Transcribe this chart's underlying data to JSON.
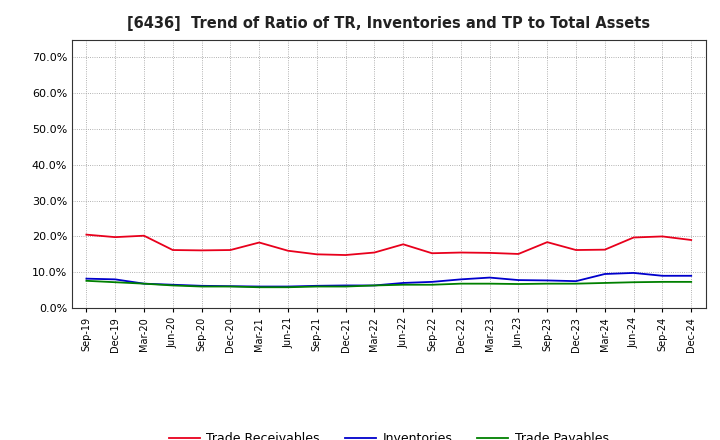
{
  "title": "[6436]  Trend of Ratio of TR, Inventories and TP to Total Assets",
  "x_labels": [
    "Sep-19",
    "Dec-19",
    "Mar-20",
    "Jun-20",
    "Sep-20",
    "Dec-20",
    "Mar-21",
    "Jun-21",
    "Sep-21",
    "Dec-21",
    "Mar-22",
    "Jun-22",
    "Sep-22",
    "Dec-22",
    "Mar-23",
    "Jun-23",
    "Sep-23",
    "Dec-23",
    "Mar-24",
    "Jun-24",
    "Sep-24",
    "Dec-24"
  ],
  "trade_receivables": [
    0.205,
    0.198,
    0.202,
    0.162,
    0.161,
    0.162,
    0.183,
    0.16,
    0.15,
    0.148,
    0.155,
    0.178,
    0.153,
    0.155,
    0.154,
    0.151,
    0.184,
    0.162,
    0.163,
    0.197,
    0.2,
    0.19
  ],
  "inventories": [
    0.082,
    0.08,
    0.068,
    0.065,
    0.062,
    0.061,
    0.06,
    0.06,
    0.062,
    0.063,
    0.063,
    0.07,
    0.073,
    0.08,
    0.085,
    0.078,
    0.077,
    0.075,
    0.095,
    0.098,
    0.09,
    0.09
  ],
  "trade_payables": [
    0.076,
    0.072,
    0.068,
    0.063,
    0.06,
    0.06,
    0.058,
    0.058,
    0.06,
    0.06,
    0.063,
    0.065,
    0.065,
    0.068,
    0.068,
    0.067,
    0.068,
    0.068,
    0.07,
    0.072,
    0.073,
    0.073
  ],
  "tr_color": "#e8001c",
  "inv_color": "#0000cc",
  "tp_color": "#008000",
  "ylim": [
    0.0,
    0.75
  ],
  "yticks": [
    0.0,
    0.1,
    0.2,
    0.3,
    0.4,
    0.5,
    0.6,
    0.7
  ],
  "ytick_labels": [
    "0.0%",
    "10.0%",
    "20.0%",
    "30.0%",
    "40.0%",
    "50.0%",
    "60.0%",
    "70.0%"
  ],
  "background_color": "#ffffff",
  "grid_color": "#999999",
  "legend_labels": [
    "Trade Receivables",
    "Inventories",
    "Trade Payables"
  ]
}
